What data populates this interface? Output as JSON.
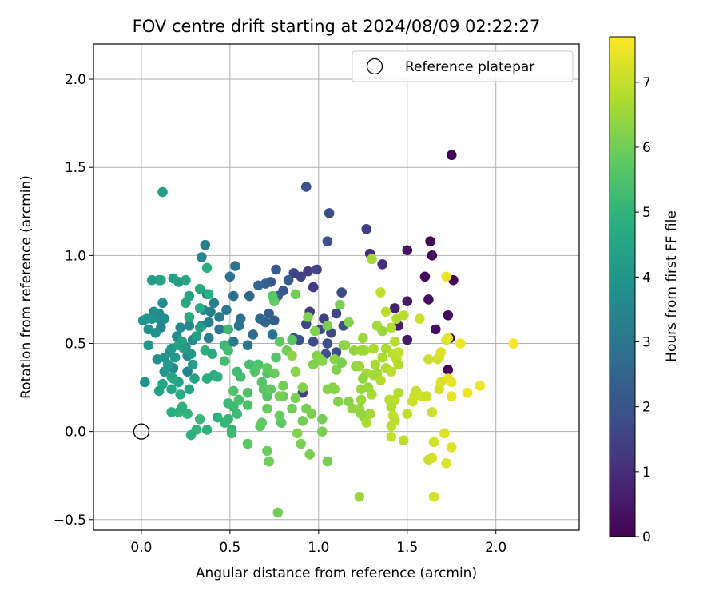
{
  "chart_data": {
    "type": "scatter",
    "title": "FOV centre drift starting at 2024/08/09 02:22:27",
    "xlabel": "Angular distance from reference (arcmin)",
    "ylabel": "Rotation from reference (arcmin)",
    "xlim": [
      -0.27,
      2.47
    ],
    "ylim": [
      -0.56,
      2.2
    ],
    "x_ticks": [
      0.0,
      0.5,
      1.0,
      1.5,
      2.0
    ],
    "x_tick_labels": [
      "0.0",
      "0.5",
      "1.0",
      "1.5",
      "2.0"
    ],
    "y_ticks": [
      -0.5,
      0.0,
      0.5,
      1.0,
      1.5,
      2.0
    ],
    "y_tick_labels": [
      "−0.5",
      "0.0",
      "0.5",
      "1.0",
      "1.5",
      "2.0"
    ],
    "grid": true,
    "legend": {
      "position": "top-right",
      "entries": [
        "Reference platepar"
      ]
    },
    "reference_point": {
      "x": 0.0,
      "y": 0.0,
      "label": "Reference platepar"
    },
    "colorbar": {
      "label": "Hours from first FF file",
      "colormap": "viridis",
      "range": [
        0,
        7.7
      ],
      "ticks": [
        0,
        1,
        2,
        3,
        4,
        5,
        6,
        7
      ],
      "tick_labels": [
        "0",
        "1",
        "2",
        "3",
        "4",
        "5",
        "6",
        "7"
      ]
    },
    "points": [
      [
        1.75,
        1.57,
        0.0
      ],
      [
        1.63,
        1.08,
        0.1
      ],
      [
        1.64,
        1.0,
        0.2
      ],
      [
        1.76,
        0.86,
        0.1
      ],
      [
        1.62,
        0.75,
        0.3
      ],
      [
        1.73,
        0.66,
        0.2
      ],
      [
        1.66,
        0.58,
        0.3
      ],
      [
        1.74,
        0.53,
        0.2
      ],
      [
        1.73,
        0.35,
        0.1
      ],
      [
        1.6,
        0.88,
        0.2
      ],
      [
        1.5,
        1.03,
        0.4
      ],
      [
        1.5,
        0.74,
        0.5
      ],
      [
        1.5,
        0.52,
        0.5
      ],
      [
        1.43,
        0.7,
        0.7
      ],
      [
        1.45,
        0.6,
        0.6
      ],
      [
        1.29,
        1.01,
        0.9
      ],
      [
        1.36,
        0.95,
        1.0
      ],
      [
        1.27,
        1.15,
        1.4
      ],
      [
        1.06,
        1.24,
        1.8
      ],
      [
        0.93,
        1.39,
        1.9
      ],
      [
        1.05,
        1.08,
        2.0
      ],
      [
        0.94,
        0.91,
        1.3
      ],
      [
        0.99,
        0.92,
        1.6
      ],
      [
        0.9,
        0.88,
        1.5
      ],
      [
        0.86,
        0.9,
        1.6
      ],
      [
        0.97,
        0.82,
        1.2
      ],
      [
        0.95,
        0.68,
        1.3
      ],
      [
        1.03,
        0.64,
        1.5
      ],
      [
        1.1,
        0.67,
        1.6
      ],
      [
        1.13,
        0.79,
        1.7
      ],
      [
        1.14,
        0.6,
        1.8
      ],
      [
        1.07,
        0.56,
        1.6
      ],
      [
        0.93,
        0.61,
        1.6
      ],
      [
        1.01,
        0.58,
        1.7
      ],
      [
        0.97,
        0.51,
        1.8
      ],
      [
        1.05,
        0.5,
        1.9
      ],
      [
        1.1,
        0.45,
        1.8
      ],
      [
        1.04,
        0.44,
        1.9
      ],
      [
        0.86,
        0.53,
        1.7
      ],
      [
        0.91,
        0.22,
        1.4
      ],
      [
        0.89,
        0.52,
        1.9
      ],
      [
        0.8,
        0.8,
        2.1
      ],
      [
        0.76,
        0.92,
        2.2
      ],
      [
        0.83,
        0.86,
        2.2
      ],
      [
        0.73,
        0.85,
        2.1
      ],
      [
        0.7,
        0.84,
        2.3
      ],
      [
        0.77,
        0.77,
        2.3
      ],
      [
        0.66,
        0.83,
        2.5
      ],
      [
        0.72,
        0.67,
        2.4
      ],
      [
        0.67,
        0.64,
        2.6
      ],
      [
        0.75,
        0.63,
        2.3
      ],
      [
        0.7,
        0.62,
        2.6
      ],
      [
        0.74,
        0.55,
        2.9
      ],
      [
        0.63,
        0.55,
        2.7
      ],
      [
        0.61,
        0.77,
        2.6
      ],
      [
        0.52,
        0.77,
        2.7
      ],
      [
        0.5,
        0.88,
        2.9
      ],
      [
        0.53,
        0.94,
        3.0
      ],
      [
        0.56,
        0.64,
        2.8
      ],
      [
        0.55,
        0.6,
        2.9
      ],
      [
        0.6,
        0.49,
        3.0
      ],
      [
        0.52,
        0.51,
        3.1
      ],
      [
        0.48,
        0.48,
        3.2
      ],
      [
        0.44,
        0.58,
        3.0
      ],
      [
        0.48,
        0.69,
        3.1
      ],
      [
        0.44,
        0.65,
        3.2
      ],
      [
        0.41,
        0.73,
        3.3
      ],
      [
        0.39,
        0.68,
        3.3
      ],
      [
        0.35,
        0.69,
        3.4
      ],
      [
        0.37,
        0.78,
        3.1
      ],
      [
        0.34,
        0.99,
        3.4
      ],
      [
        0.36,
        1.06,
        3.3
      ],
      [
        0.38,
        0.62,
        3.3
      ],
      [
        0.34,
        0.6,
        3.6
      ],
      [
        0.38,
        0.53,
        3.2
      ],
      [
        0.27,
        0.6,
        3.5
      ],
      [
        0.29,
        0.52,
        3.5
      ],
      [
        0.25,
        0.48,
        3.7
      ],
      [
        0.26,
        0.34,
        3.4
      ],
      [
        0.26,
        0.43,
        3.5
      ],
      [
        0.22,
        0.59,
        3.6
      ],
      [
        0.2,
        0.54,
        3.7
      ],
      [
        0.18,
        0.36,
        3.6
      ],
      [
        0.16,
        0.45,
        3.8
      ],
      [
        0.13,
        0.42,
        3.9
      ],
      [
        0.11,
        0.59,
        3.5
      ],
      [
        0.1,
        0.64,
        3.7
      ],
      [
        0.12,
        0.73,
        3.8
      ],
      [
        0.06,
        0.64,
        3.9
      ],
      [
        0.03,
        0.64,
        3.9
      ],
      [
        0.04,
        0.58,
        3.9
      ],
      [
        0.01,
        0.63,
        4.0
      ],
      [
        0.07,
        0.68,
        3.8
      ],
      [
        0.1,
        0.67,
        3.7
      ],
      [
        0.13,
        0.64,
        3.7
      ],
      [
        0.08,
        0.56,
        4.0
      ],
      [
        0.04,
        0.49,
        4.0
      ],
      [
        0.02,
        0.28,
        4.0
      ],
      [
        0.09,
        0.41,
        3.9
      ],
      [
        0.13,
        0.34,
        4.0
      ],
      [
        0.15,
        0.38,
        4.1
      ],
      [
        0.19,
        0.42,
        4.1
      ],
      [
        0.17,
        0.47,
        4.1
      ],
      [
        0.21,
        0.49,
        4.3
      ],
      [
        0.23,
        0.51,
        4.4
      ],
      [
        0.24,
        0.47,
        4.2
      ],
      [
        0.28,
        0.44,
        4.1
      ],
      [
        0.29,
        0.38,
        4.2
      ],
      [
        0.31,
        0.54,
        4.3
      ],
      [
        0.33,
        0.59,
        4.3
      ],
      [
        0.3,
        0.3,
        4.4
      ],
      [
        0.27,
        0.24,
        4.5
      ],
      [
        0.21,
        0.28,
        4.4
      ],
      [
        0.17,
        0.24,
        4.6
      ],
      [
        0.18,
        0.3,
        4.6
      ],
      [
        0.17,
        0.31,
        4.5
      ],
      [
        0.12,
        0.27,
        4.6
      ],
      [
        0.1,
        0.23,
        4.4
      ],
      [
        0.06,
        0.86,
        4.2
      ],
      [
        0.1,
        0.86,
        4.2
      ],
      [
        0.18,
        0.87,
        4.3
      ],
      [
        0.21,
        0.85,
        4.2
      ],
      [
        0.25,
        0.86,
        4.5
      ],
      [
        0.12,
        1.36,
        4.3
      ],
      [
        0.11,
        0.86,
        4.5
      ],
      [
        0.25,
        0.73,
        4.6
      ],
      [
        0.27,
        0.77,
        4.5
      ],
      [
        0.27,
        0.65,
        4.7
      ],
      [
        0.33,
        0.81,
        4.7
      ],
      [
        0.37,
        0.93,
        4.8
      ],
      [
        0.38,
        0.78,
        4.8
      ],
      [
        0.33,
        0.7,
        4.8
      ],
      [
        0.37,
        0.3,
        4.8
      ],
      [
        0.41,
        0.32,
        4.8
      ],
      [
        0.43,
        0.31,
        4.9
      ],
      [
        0.36,
        0.46,
        4.9
      ],
      [
        0.4,
        0.44,
        4.7
      ],
      [
        0.43,
        0.08,
        4.9
      ],
      [
        0.37,
        0.01,
        4.9
      ],
      [
        0.31,
        0.01,
        5.0
      ],
      [
        0.28,
        -0.02,
        4.9
      ],
      [
        0.22,
        0.21,
        4.8
      ],
      [
        0.21,
        0.11,
        5.0
      ],
      [
        0.17,
        0.11,
        4.8
      ],
      [
        0.23,
        0.14,
        4.9
      ],
      [
        0.26,
        0.1,
        5.0
      ],
      [
        0.33,
        0.07,
        5.1
      ],
      [
        0.47,
        0.05,
        5.1
      ],
      [
        0.49,
        0.07,
        5.1
      ],
      [
        0.52,
        0.14,
        5.2
      ],
      [
        0.49,
        0.16,
        5.2
      ],
      [
        0.51,
        0.01,
        5.1
      ],
      [
        0.51,
        -0.01,
        5.2
      ],
      [
        0.54,
        0.1,
        5.2
      ],
      [
        0.49,
        0.58,
        5.2
      ],
      [
        0.47,
        0.49,
        5.2
      ],
      [
        0.49,
        0.46,
        5.3
      ],
      [
        0.47,
        0.4,
        5.3
      ],
      [
        0.54,
        0.34,
        5.3
      ],
      [
        0.56,
        0.31,
        5.3
      ],
      [
        0.52,
        0.23,
        5.5
      ],
      [
        0.55,
        0.18,
        5.4
      ],
      [
        0.6,
        0.15,
        5.5
      ],
      [
        0.6,
        0.22,
        5.5
      ],
      [
        0.61,
        0.38,
        5.4
      ],
      [
        0.66,
        0.38,
        5.5
      ],
      [
        0.64,
        0.34,
        5.6
      ],
      [
        0.68,
        0.28,
        5.6
      ],
      [
        0.69,
        0.24,
        5.7
      ],
      [
        0.71,
        0.2,
        5.6
      ],
      [
        0.71,
        0.33,
        5.6
      ],
      [
        0.71,
        0.36,
        5.8
      ],
      [
        0.76,
        0.42,
        5.6
      ],
      [
        0.75,
        0.74,
        5.8
      ],
      [
        0.74,
        0.77,
        5.7
      ],
      [
        0.78,
        0.51,
        5.8
      ],
      [
        0.85,
        0.52,
        5.7
      ],
      [
        0.75,
        0.33,
        5.9
      ],
      [
        0.73,
        0.24,
        5.8
      ],
      [
        0.67,
        0.03,
        5.8
      ],
      [
        0.79,
        0.05,
        5.7
      ],
      [
        0.78,
        0.09,
        5.9
      ],
      [
        0.8,
        0.2,
        5.9
      ],
      [
        0.8,
        0.26,
        6.0
      ],
      [
        0.78,
        0.2,
        6.1
      ],
      [
        0.71,
        0.13,
        5.9
      ],
      [
        0.71,
        -0.11,
        5.9
      ],
      [
        0.72,
        -0.17,
        6.0
      ],
      [
        0.77,
        -0.46,
        6.0
      ],
      [
        0.6,
        -0.07,
        5.7
      ],
      [
        0.68,
        0.05,
        5.8
      ],
      [
        0.85,
        0.13,
        6.0
      ],
      [
        0.87,
        0.19,
        6.1
      ],
      [
        0.91,
        0.06,
        6.0
      ],
      [
        0.9,
        -0.07,
        6.1
      ],
      [
        0.88,
        -0.01,
        6.2
      ],
      [
        0.95,
        -0.13,
        6.1
      ],
      [
        1.05,
        -0.17,
        6.1
      ],
      [
        1.02,
        0.0,
        6.1
      ],
      [
        1.02,
        0.07,
        6.0
      ],
      [
        0.96,
        0.1,
        6.1
      ],
      [
        0.93,
        0.13,
        6.1
      ],
      [
        0.91,
        0.25,
        6.2
      ],
      [
        0.87,
        0.34,
        6.3
      ],
      [
        0.82,
        0.46,
        6.0
      ],
      [
        0.85,
        0.43,
        6.3
      ],
      [
        0.87,
        0.78,
        6.0
      ],
      [
        0.99,
        0.43,
        6.2
      ],
      [
        1.02,
        0.4,
        6.2
      ],
      [
        1.01,
        0.41,
        6.3
      ],
      [
        1.09,
        0.41,
        6.3
      ],
      [
        1.1,
        0.35,
        6.2
      ],
      [
        1.05,
        0.24,
        6.3
      ],
      [
        1.09,
        0.24,
        6.4
      ],
      [
        1.11,
        0.17,
        6.2
      ],
      [
        1.08,
        0.25,
        6.3
      ],
      [
        1.14,
        0.49,
        6.2
      ],
      [
        1.05,
        0.6,
        6.1
      ],
      [
        1.12,
        0.72,
        6.1
      ],
      [
        1.15,
        0.49,
        6.4
      ],
      [
        1.17,
        0.62,
        6.2
      ],
      [
        1.2,
        0.46,
        6.4
      ],
      [
        1.21,
        0.37,
        6.4
      ],
      [
        1.19,
        0.13,
        6.4
      ],
      [
        1.23,
        0.13,
        6.5
      ],
      [
        1.26,
        0.08,
        6.5
      ],
      [
        1.24,
        0.1,
        6.4
      ],
      [
        1.24,
        0.18,
        6.5
      ],
      [
        1.29,
        0.1,
        6.6
      ],
      [
        1.24,
        0.24,
        6.5
      ],
      [
        1.28,
        0.25,
        6.5
      ],
      [
        1.31,
        0.32,
        6.6
      ],
      [
        1.33,
        0.33,
        6.6
      ],
      [
        1.27,
        0.33,
        6.6
      ],
      [
        1.3,
        0.21,
        6.6
      ],
      [
        1.23,
        0.37,
        6.5
      ],
      [
        1.23,
        -0.37,
        6.5
      ],
      [
        1.26,
        0.46,
        6.6
      ],
      [
        1.24,
        0.46,
        6.5
      ],
      [
        1.31,
        0.47,
        6.7
      ],
      [
        1.27,
        0.05,
        6.7
      ],
      [
        1.33,
        0.6,
        6.6
      ],
      [
        1.36,
        0.57,
        6.5
      ],
      [
        1.36,
        0.42,
        6.7
      ],
      [
        1.38,
        0.47,
        6.7
      ],
      [
        1.38,
        0.36,
        6.8
      ],
      [
        1.41,
        0.34,
        6.9
      ],
      [
        1.35,
        0.29,
        6.8
      ],
      [
        1.4,
        0.18,
        6.9
      ],
      [
        1.43,
        0.18,
        6.9
      ],
      [
        1.45,
        0.22,
        6.8
      ],
      [
        1.41,
        0.14,
        6.8
      ],
      [
        1.42,
        0.09,
        7.0
      ],
      [
        1.43,
        0.06,
        6.9
      ],
      [
        1.41,
        0.03,
        6.9
      ],
      [
        1.41,
        -0.03,
        7.0
      ],
      [
        1.48,
        -0.05,
        6.9
      ],
      [
        1.5,
        0.1,
        7.0
      ],
      [
        1.53,
        0.17,
        7.1
      ],
      [
        1.55,
        0.23,
        7.0
      ],
      [
        1.54,
        0.2,
        7.1
      ],
      [
        1.58,
        0.2,
        7.2
      ],
      [
        1.61,
        0.2,
        7.1
      ],
      [
        1.64,
        0.11,
        7.1
      ],
      [
        1.62,
        -0.16,
        7.1
      ],
      [
        1.64,
        -0.15,
        7.2
      ],
      [
        1.65,
        -0.06,
        7.2
      ],
      [
        1.65,
        -0.37,
        7.2
      ],
      [
        1.71,
        -0.01,
        7.3
      ],
      [
        1.72,
        -0.18,
        7.3
      ],
      [
        1.75,
        -0.09,
        7.3
      ],
      [
        1.68,
        0.24,
        7.2
      ],
      [
        1.69,
        0.28,
        7.3
      ],
      [
        1.73,
        0.3,
        7.4
      ],
      [
        1.75,
        0.28,
        7.4
      ],
      [
        1.75,
        0.2,
        7.4
      ],
      [
        1.84,
        0.22,
        7.5
      ],
      [
        1.91,
        0.26,
        7.5
      ],
      [
        1.8,
        0.5,
        7.5
      ],
      [
        2.1,
        0.5,
        7.6
      ],
      [
        1.68,
        0.42,
        7.3
      ],
      [
        1.67,
        0.41,
        7.2
      ],
      [
        1.62,
        0.41,
        7.1
      ],
      [
        1.69,
        0.45,
        7.3
      ],
      [
        1.72,
        0.52,
        7.3
      ],
      [
        1.73,
        0.53,
        7.4
      ],
      [
        1.72,
        0.88,
        7.5
      ],
      [
        1.57,
        0.64,
        7.1
      ],
      [
        1.48,
        0.66,
        6.9
      ],
      [
        1.44,
        0.64,
        6.8
      ],
      [
        1.38,
        0.68,
        6.9
      ],
      [
        1.35,
        0.79,
        7.0
      ],
      [
        1.41,
        0.59,
        6.8
      ],
      [
        1.43,
        0.51,
        6.8
      ],
      [
        1.44,
        0.41,
        6.9
      ],
      [
        1.45,
        0.38,
        6.8
      ],
      [
        1.42,
        0.44,
        6.9
      ],
      [
        1.45,
        0.45,
        7.0
      ],
      [
        1.32,
        0.38,
        6.7
      ],
      [
        1.3,
        0.98,
        6.6
      ],
      [
        1.25,
        0.53,
        6.5
      ],
      [
        1.25,
        0.3,
        6.4
      ],
      [
        1.17,
        0.17,
        6.3
      ],
      [
        1.13,
        0.39,
        6.1
      ],
      [
        0.97,
        0.38,
        6.2
      ],
      [
        0.94,
        0.65,
        6.2
      ],
      [
        0.98,
        0.57,
        6.2
      ]
    ]
  }
}
